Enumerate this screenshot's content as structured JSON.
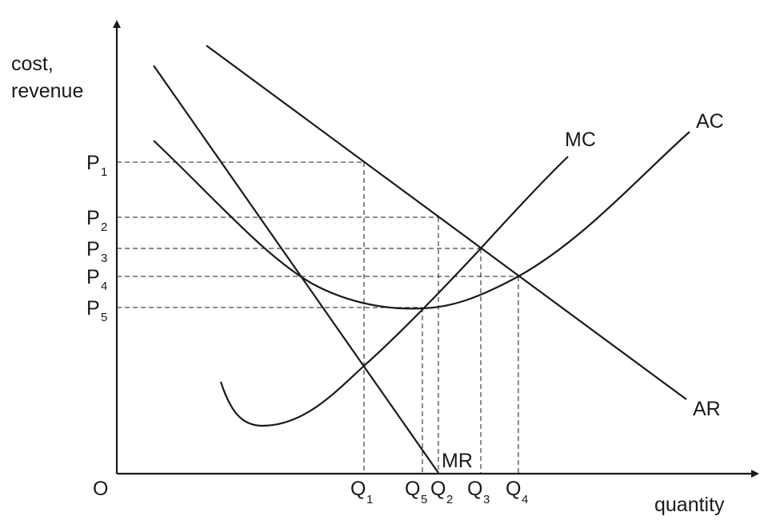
{
  "axes": {
    "y_label_line1": "cost,",
    "y_label_line2": "revenue",
    "x_label": "quantity",
    "origin": "O"
  },
  "curves": {
    "ac": "AC",
    "mc": "MC",
    "ar": "AR",
    "mr": "MR"
  },
  "prices": [
    {
      "base": "P",
      "sub": "1"
    },
    {
      "base": "P",
      "sub": "2"
    },
    {
      "base": "P",
      "sub": "3"
    },
    {
      "base": "P",
      "sub": "4"
    },
    {
      "base": "P",
      "sub": "5"
    }
  ],
  "quantities": [
    {
      "base": "Q",
      "sub": "1"
    },
    {
      "base": "Q",
      "sub": "5"
    },
    {
      "base": "Q",
      "sub": "2"
    },
    {
      "base": "Q",
      "sub": "3"
    },
    {
      "base": "Q",
      "sub": "4"
    }
  ]
}
